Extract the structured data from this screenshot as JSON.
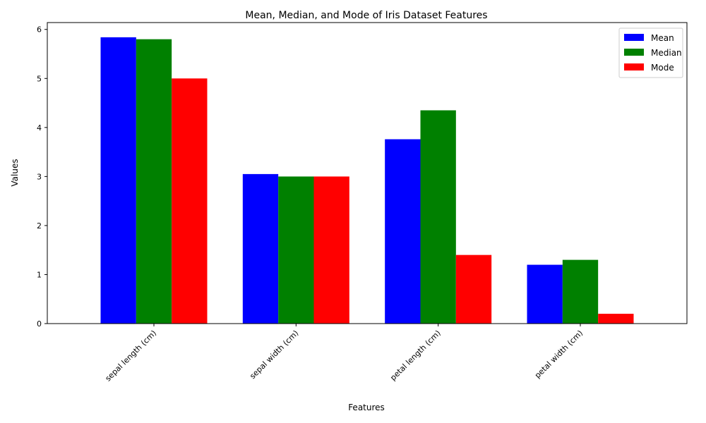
{
  "chart_data": {
    "type": "bar",
    "title": "Mean, Median, and Mode of Iris Dataset Features",
    "xlabel": "Features",
    "ylabel": "Values",
    "categories": [
      "sepal length (cm)",
      "sepal width (cm)",
      "petal length (cm)",
      "petal width (cm)"
    ],
    "series": [
      {
        "name": "Mean",
        "color": "#0000ff",
        "values": [
          5.84,
          3.05,
          3.76,
          1.2
        ]
      },
      {
        "name": "Median",
        "color": "#008000",
        "values": [
          5.8,
          3.0,
          4.35,
          1.3
        ]
      },
      {
        "name": "Mode",
        "color": "#ff0000",
        "values": [
          5.0,
          3.0,
          1.4,
          0.2
        ]
      }
    ],
    "ylim": [
      0,
      6.14
    ],
    "yticks": [
      0,
      1,
      2,
      3,
      4,
      5,
      6
    ],
    "grid": false,
    "legend": "top-right",
    "xtick_rotation": 45
  }
}
